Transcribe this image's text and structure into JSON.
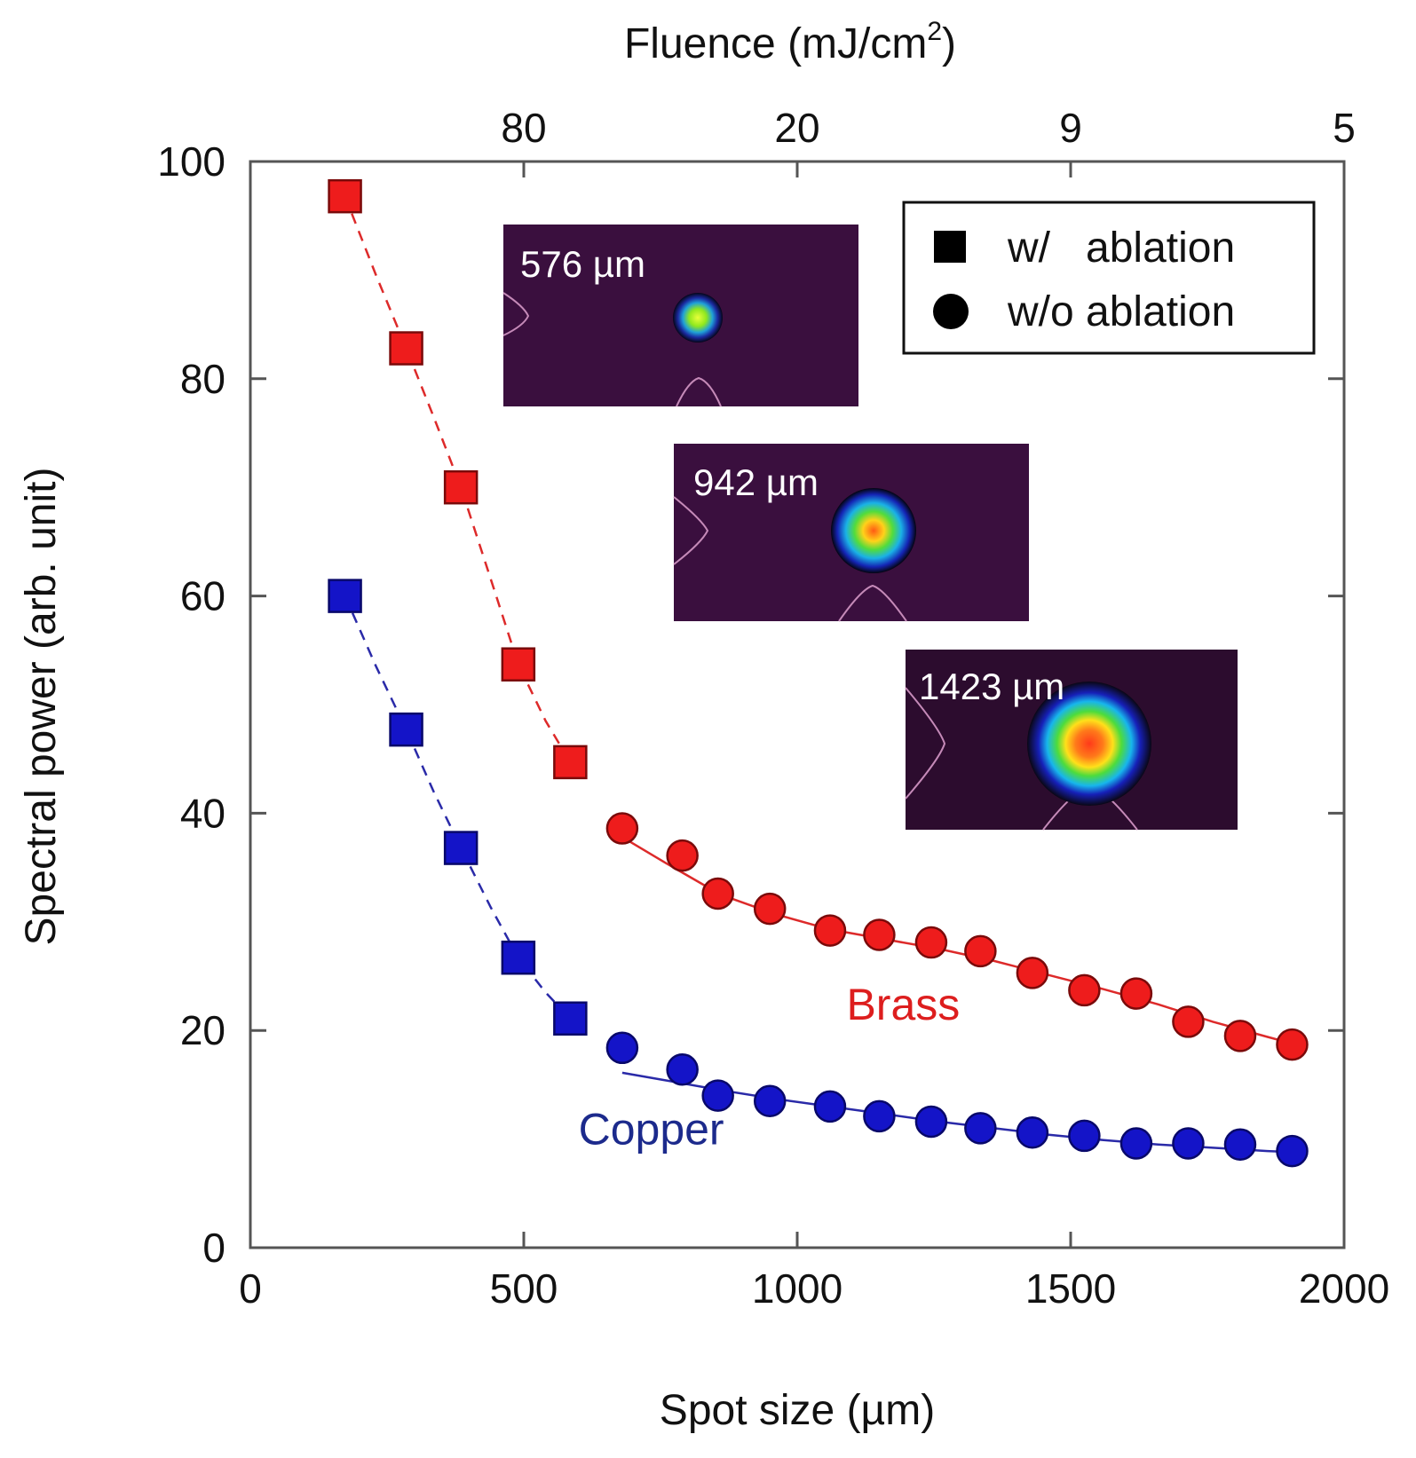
{
  "chart_data": {
    "type": "scatter",
    "xlabel": "Spot size (µm)",
    "ylabel": "Spectral power (arb. unit)",
    "top_axis_label": "Fluence (mJ/cm",
    "top_axis_label_sup": "2",
    "top_axis_label_end": ")",
    "xlim": [
      0,
      2000
    ],
    "ylim": [
      0,
      100
    ],
    "x_ticks": [
      0,
      500,
      1000,
      1500,
      2000
    ],
    "y_ticks": [
      0,
      20,
      40,
      60,
      80,
      100
    ],
    "top_ticks": [
      {
        "label": "80",
        "x": 500
      },
      {
        "label": "20",
        "x": 1000
      },
      {
        "label": "9",
        "x": 1500
      },
      {
        "label": "5",
        "x": 2000
      }
    ],
    "grid": false,
    "legend": {
      "position": "top-right",
      "entries": [
        {
          "marker": "square",
          "label": "w/   ablation"
        },
        {
          "marker": "circle",
          "label": "w/o ablation"
        }
      ]
    },
    "series_labels": [
      {
        "text": "Brass",
        "x": 1090,
        "y": 21,
        "color": "#dd1e1e"
      },
      {
        "text": "Copper",
        "x": 600,
        "y": 9.5,
        "color": "#1c2a8c"
      }
    ],
    "series": [
      {
        "name": "Brass w/ ablation",
        "marker": "square",
        "color": "#ee1c1c",
        "line": "dashed",
        "x": [
          173,
          285,
          385,
          490,
          585
        ],
        "y": [
          96.8,
          82.8,
          70.0,
          53.7,
          44.7
        ]
      },
      {
        "name": "Brass w/o ablation",
        "marker": "circle",
        "color": "#ee1c1c",
        "line": "solid",
        "x": [
          680,
          790,
          855,
          950,
          1060,
          1150,
          1245,
          1335,
          1430,
          1525,
          1620,
          1715,
          1810,
          1905
        ],
        "y": [
          38.6,
          36.1,
          32.6,
          31.2,
          29.2,
          28.8,
          28.1,
          27.3,
          25.3,
          23.7,
          23.4,
          20.8,
          19.5,
          18.7
        ]
      },
      {
        "name": "Copper w/ ablation",
        "marker": "square",
        "color": "#1414c8",
        "line": "dashed",
        "x": [
          173,
          285,
          385,
          490,
          585
        ],
        "y": [
          60.0,
          47.7,
          36.8,
          26.7,
          21.1
        ]
      },
      {
        "name": "Copper w/o ablation",
        "marker": "circle",
        "color": "#1414c8",
        "line": "solid",
        "x": [
          680,
          790,
          855,
          950,
          1060,
          1150,
          1245,
          1335,
          1430,
          1525,
          1620,
          1715,
          1810,
          1905
        ],
        "y": [
          18.4,
          16.4,
          14.0,
          13.5,
          13.0,
          12.1,
          11.6,
          11.0,
          10.6,
          10.3,
          9.6,
          9.6,
          9.5,
          8.9
        ]
      }
    ],
    "fit_curves": [
      {
        "name": "Brass fit w/ ablation",
        "color": "#dd2a2a",
        "dash": true,
        "x": [
          173,
          230,
          285,
          335,
          385,
          440,
          490,
          540,
          585
        ],
        "y": [
          96.8,
          89.5,
          82.8,
          76.5,
          70.0,
          61.5,
          53.7,
          48.5,
          44.7
        ]
      },
      {
        "name": "Brass fit w/o ablation",
        "color": "#dd2a2a",
        "dash": false,
        "x": [
          680,
          760,
          860,
          960,
          1060,
          1160,
          1260,
          1360,
          1460,
          1560,
          1660,
          1760,
          1860,
          1905
        ],
        "y": [
          37.8,
          35.4,
          32.5,
          30.7,
          29.3,
          28.4,
          27.5,
          26.4,
          25.1,
          23.8,
          22.4,
          20.8,
          19.4,
          18.8
        ]
      },
      {
        "name": "Copper fit w/ ablation",
        "color": "#2a2aa8",
        "dash": true,
        "x": [
          173,
          230,
          285,
          335,
          385,
          440,
          490,
          540,
          585
        ],
        "y": [
          60.0,
          53.5,
          47.7,
          42.0,
          36.8,
          31.3,
          26.7,
          23.5,
          21.1
        ]
      },
      {
        "name": "Copper fit w/o ablation",
        "color": "#2a2aa8",
        "dash": false,
        "x": [
          680,
          760,
          860,
          960,
          1060,
          1160,
          1260,
          1360,
          1460,
          1560,
          1660,
          1760,
          1860,
          1905
        ],
        "y": [
          16.1,
          15.4,
          14.5,
          13.7,
          13.0,
          12.3,
          11.6,
          11.0,
          10.4,
          9.9,
          9.5,
          9.2,
          8.9,
          8.8
        ]
      }
    ],
    "insets": [
      {
        "label": "576 µm",
        "spot_color": "#b6e21a"
      },
      {
        "label": "942 µm",
        "spot_color": "#ff6a1a"
      },
      {
        "label": "1423 µm",
        "spot_color": "#ff3a1a"
      }
    ]
  }
}
